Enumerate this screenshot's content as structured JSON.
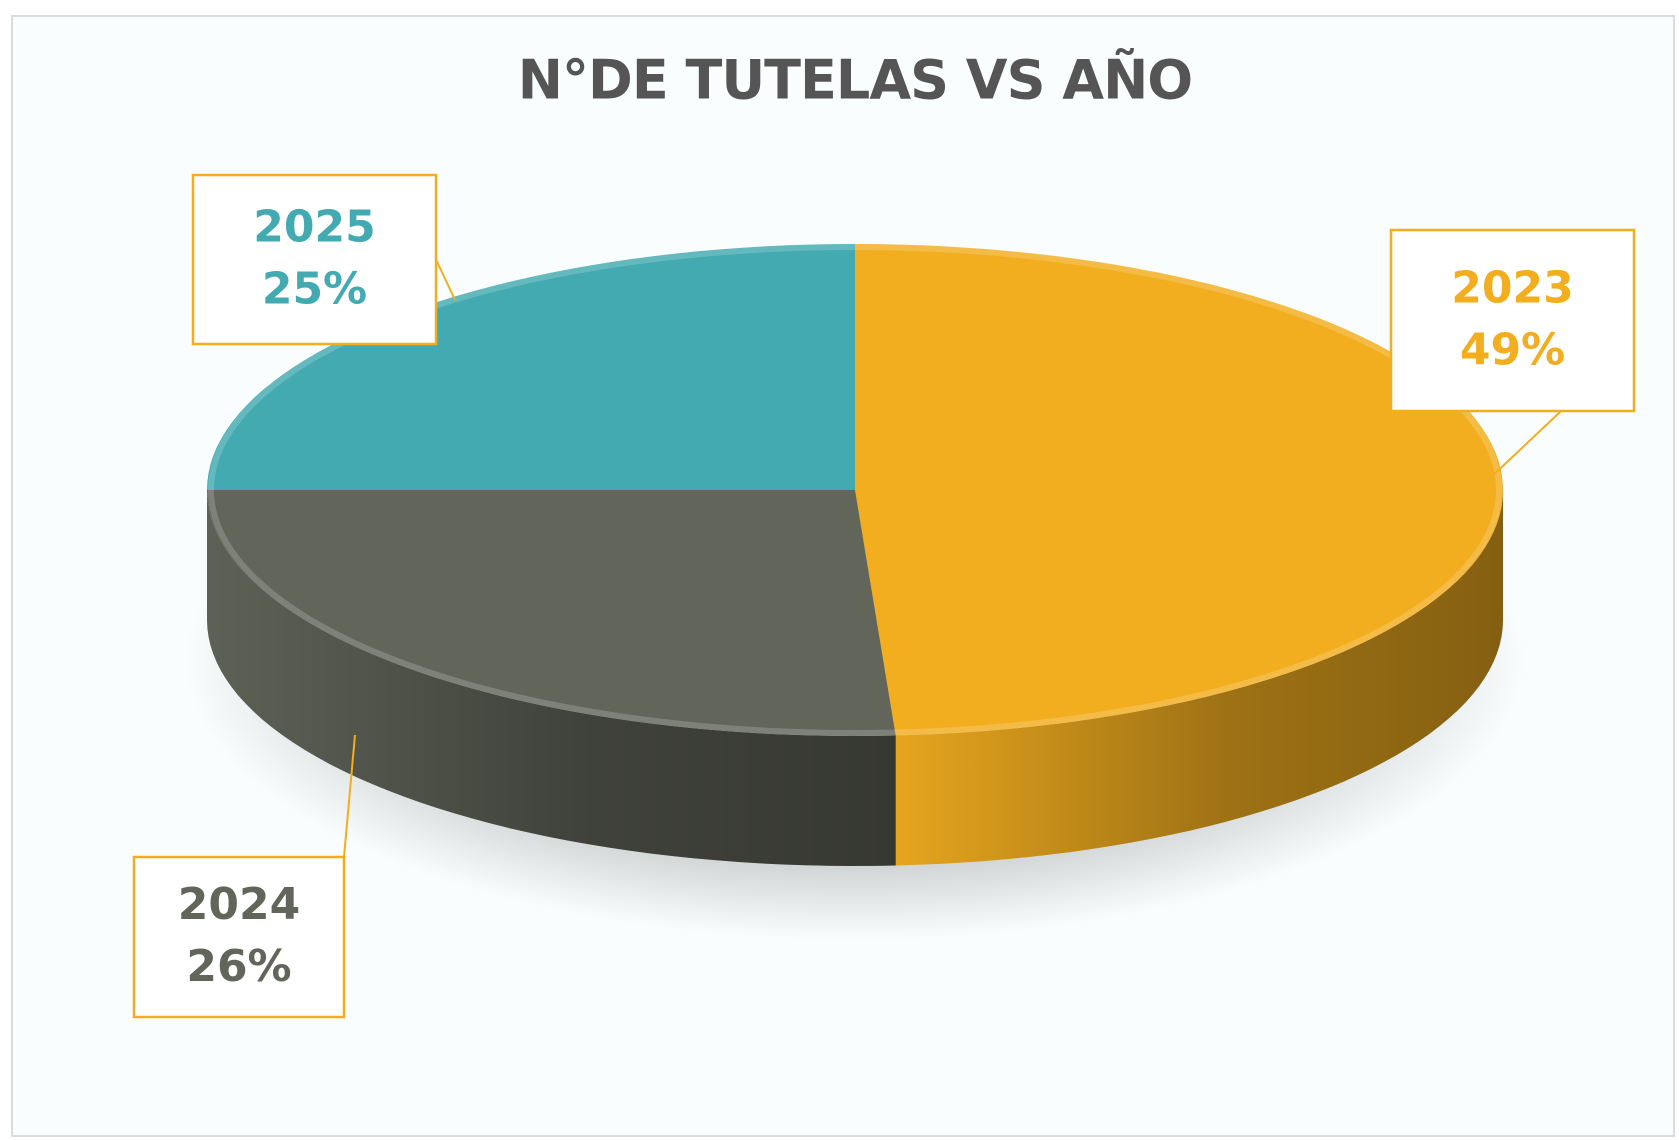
{
  "chart_data": {
    "type": "pie",
    "title": "N°DE TUTELAS VS AÑO",
    "categories": [
      "2023",
      "2024",
      "2025"
    ],
    "values": [
      49,
      26,
      25
    ],
    "value_labels": [
      "49%",
      "26%",
      "25%"
    ],
    "colors": [
      "#F2AE1F",
      "#62665A",
      "#42AAB0"
    ]
  }
}
